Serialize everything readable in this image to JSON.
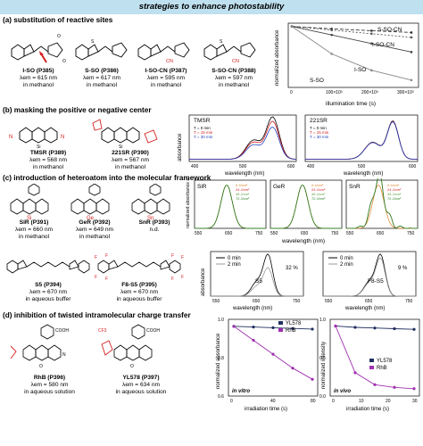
{
  "title": "strategies to enhance photostability",
  "sections": {
    "a": "(a) substitution of reactive sites",
    "b": "(b) masking the positive or negative center",
    "c": "(c) introduction of heteroatom into the molecular framework",
    "d": "(d) inhibition of twisted intramolecular charge transfer"
  },
  "molecules": {
    "iso": {
      "name": "I-SO (P385)",
      "lambda": "λem = 615 nm",
      "solvent": "in methanol"
    },
    "sso": {
      "name": "S-SO (P386)",
      "lambda": "λem = 617 nm",
      "solvent": "in methanol"
    },
    "isocn": {
      "name": "I-SO-CN (P387)",
      "lambda": "λem = 595 nm",
      "solvent": "in methanol"
    },
    "ssocn": {
      "name": "S-SO-CN (P388)",
      "lambda": "λem = 597 nm",
      "solvent": "in methanol"
    },
    "tmsr": {
      "name": "TMSR (P389)",
      "lambda": "λem = 568 nm",
      "solvent": "in methanol"
    },
    "r221": {
      "name": "221SR (P390)",
      "lambda": "λem = 567 nm",
      "solvent": "in methanol"
    },
    "sir": {
      "name": "SiR (P391)",
      "lambda": "λem = 660 nm",
      "solvent": "in methanol"
    },
    "ger": {
      "name": "GeR (P392)",
      "lambda": "λem = 649 nm",
      "solvent": "in methanol"
    },
    "snr": {
      "name": "SnR (P393)",
      "lambda": "n.d.",
      "solvent": ""
    },
    "s5": {
      "name": "S5 (P394)",
      "lambda": "λem = 670 nm",
      "solvent": "in aqueous buffer"
    },
    "f8s5": {
      "name": "F8-S5 (P395)",
      "lambda": "λem = 670 nm",
      "solvent": "in aqueous buffer"
    },
    "rhb": {
      "name": "RhB (P396)",
      "lambda": "λem = 580 nm",
      "solvent": "in aqueous solution"
    },
    "yl578": {
      "name": "YL578 (P397)",
      "lambda": "λem = 634 nm",
      "solvent": "in aqueous solution"
    }
  },
  "chart_data": [
    {
      "type": "line",
      "id": "a",
      "xlabel": "illumination time (s)",
      "ylabel": "normalized absorbance",
      "xticks": [
        "0",
        "100×10³",
        "200×10³",
        "300×10³"
      ],
      "ylim": [
        0,
        1.0
      ],
      "series": [
        {
          "name": "S-SO-CN",
          "values": [
            1.0,
            0.96,
            0.93,
            0.9
          ]
        },
        {
          "name": "I-SO-CN",
          "values": [
            1.0,
            0.94,
            0.88,
            0.82
          ]
        },
        {
          "name": "I-SO",
          "values": [
            1.0,
            0.86,
            0.72,
            0.58
          ]
        },
        {
          "name": "S-SO",
          "values": [
            1.0,
            0.55,
            0.28,
            0.12
          ]
        }
      ]
    },
    {
      "type": "line",
      "id": "b1",
      "title": "TMSR",
      "xlabel": "wavelength (nm)",
      "ylabel": "absorbance",
      "xticks": [
        "400",
        "500",
        "600"
      ],
      "series": [
        {
          "name": "T = 0 min",
          "peak": 0.95
        },
        {
          "name": "T = 15 min",
          "peak": 0.85
        },
        {
          "name": "T = 30 min",
          "peak": 0.72
        }
      ]
    },
    {
      "type": "line",
      "id": "b2",
      "title": "221SR",
      "xlabel": "wavelength (nm)",
      "xticks": [
        "400",
        "500",
        "600"
      ],
      "series": [
        {
          "name": "T = 0 min",
          "peak": 0.86
        },
        {
          "name": "T = 15 min",
          "peak": 0.85
        },
        {
          "name": "T = 30 min",
          "peak": 0.84
        }
      ]
    },
    {
      "type": "line",
      "id": "c1",
      "ylabel": "normalized absorbance and fluorescence",
      "xlabel": "wavelength (nm)",
      "panels": [
        "SiR",
        "GeR",
        "SnR"
      ],
      "xticks": [
        "550",
        "650",
        "750"
      ],
      "series": [
        {
          "name": "0 J/cm²"
        },
        {
          "name": "24 J/cm²"
        },
        {
          "name": "48 J/cm²"
        },
        {
          "name": "72 J/cm²"
        }
      ]
    },
    {
      "type": "line",
      "id": "c2",
      "title": "S5",
      "xlabel": "wavelength (nm)",
      "ylabel": "absorbance",
      "xticks": [
        "550",
        "650",
        "750"
      ],
      "annotation": "32 %",
      "series": [
        {
          "name": "0 min"
        },
        {
          "name": "2 min"
        }
      ]
    },
    {
      "type": "line",
      "id": "c3",
      "title": "F8-S5",
      "xlabel": "wavelength (nm)",
      "xticks": [
        "550",
        "650",
        "750"
      ],
      "annotation": "9 %",
      "series": [
        {
          "name": "0 min"
        },
        {
          "name": "2 min"
        }
      ]
    },
    {
      "type": "scatter",
      "id": "d1",
      "label": "in vitro",
      "xlabel": "irradiation time (s)",
      "ylabel": "normalized absorbance",
      "xticks": [
        "0",
        "40",
        "80"
      ],
      "yticks": [
        "0.6",
        "0.8",
        "1.0"
      ],
      "series": [
        {
          "name": "YL578",
          "values": [
            1.0,
            0.995,
            0.99,
            0.985,
            0.98
          ]
        },
        {
          "name": "RhB",
          "values": [
            1.0,
            0.9,
            0.8,
            0.7,
            0.62
          ]
        }
      ]
    },
    {
      "type": "scatter",
      "id": "d2",
      "label": "in vivo",
      "xlabel": "irradiation time (s)",
      "ylabel": "normalized intensity",
      "xticks": [
        "0",
        "10",
        "20",
        "30"
      ],
      "yticks": [
        "0.0",
        "0.5",
        "1.0"
      ],
      "series": [
        {
          "name": "YL578",
          "values": [
            1.0,
            0.98,
            0.97,
            0.96,
            0.95
          ]
        },
        {
          "name": "RhB",
          "values": [
            1.0,
            0.3,
            0.12,
            0.08,
            0.06
          ]
        }
      ]
    }
  ]
}
